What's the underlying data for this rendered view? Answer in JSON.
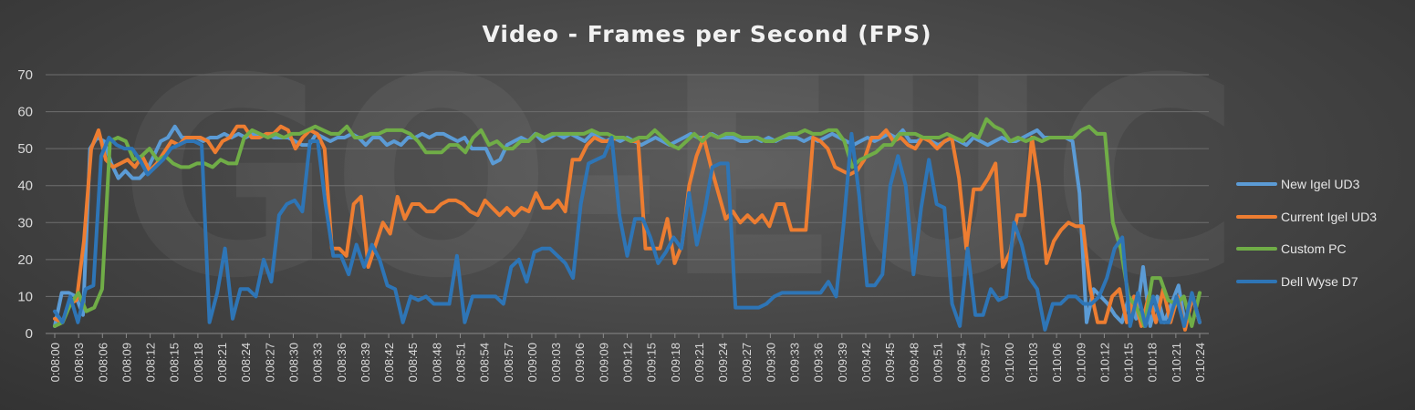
{
  "chart_data": {
    "type": "line",
    "title": "Video - Frames per Second (FPS)",
    "xlabel": "",
    "ylabel": "",
    "ylim": [
      0,
      70
    ],
    "yticks": [
      0,
      10,
      20,
      30,
      40,
      50,
      60,
      70
    ],
    "x_tick_labels": [
      "0:08:00",
      "0:08:03",
      "0:08:06",
      "0:08:09",
      "0:08:12",
      "0:08:15",
      "0:08:18",
      "0:08:21",
      "0:08:24",
      "0:08:27",
      "0:08:30",
      "0:08:33",
      "0:08:36",
      "0:08:39",
      "0:08:42",
      "0:08:45",
      "0:08:48",
      "0:08:51",
      "0:08:54",
      "0:08:57",
      "0:09:00",
      "0:09:03",
      "0:09:06",
      "0:09:09",
      "0:09:12",
      "0:09:15",
      "0:09:18",
      "0:09:21",
      "0:09:24",
      "0:09:27",
      "0:09:30",
      "0:09:33",
      "0:09:36",
      "0:09:39",
      "0:09:42",
      "0:09:45",
      "0:09:48",
      "0:09:51",
      "0:09:54",
      "0:09:57",
      "0:10:00",
      "0:10:03",
      "0:10:06",
      "0:10:09",
      "0:10:12",
      "0:10:15",
      "0:10:18",
      "0:10:21",
      "0:10:24"
    ],
    "grid": true,
    "legend_position": "right",
    "series": [
      {
        "name": "New Igel UD3",
        "color": "#5b9bd5",
        "values": [
          2,
          11,
          11,
          10,
          5,
          50,
          53,
          52,
          46,
          42,
          44,
          42,
          42,
          44,
          48,
          52,
          53,
          56,
          53,
          53,
          53,
          52,
          53,
          53,
          54,
          53,
          54,
          53,
          54,
          53,
          54,
          53,
          53,
          53,
          52,
          51,
          51,
          54,
          53,
          52,
          53,
          53,
          54,
          53,
          51,
          53,
          53,
          51,
          52,
          51,
          53,
          53,
          54,
          53,
          54,
          54,
          53,
          52,
          53,
          50,
          50,
          50,
          46,
          47,
          51,
          52,
          53,
          52,
          54,
          52,
          53,
          54,
          53,
          54,
          53,
          52,
          54,
          53,
          52,
          53,
          52,
          53,
          52,
          51,
          52,
          53,
          52,
          51,
          52,
          53,
          54,
          53,
          53,
          54,
          53,
          53,
          53,
          52,
          52,
          53,
          52,
          53,
          52,
          53,
          53,
          53,
          52,
          53,
          52,
          53,
          54,
          53,
          52,
          51,
          52,
          53,
          52,
          53,
          54,
          53,
          55,
          52,
          52,
          53,
          52,
          51,
          52,
          53,
          52,
          51,
          53,
          52,
          51,
          52,
          53,
          52,
          52,
          53,
          54,
          55,
          53,
          53,
          53,
          53,
          52,
          38,
          3,
          12,
          10,
          8,
          5,
          3,
          10,
          4,
          18,
          2,
          10,
          3,
          8,
          13,
          2,
          10,
          3
        ]
      },
      {
        "name": "Current Igel UD3",
        "color": "#ed7d31",
        "values": [
          4,
          3,
          8,
          9,
          25,
          50,
          55,
          47,
          45,
          46,
          47,
          45,
          48,
          44,
          46,
          49,
          52,
          51,
          53,
          53,
          53,
          52,
          49,
          52,
          53,
          56,
          56,
          53,
          53,
          54,
          54,
          56,
          55,
          50,
          53,
          55,
          54,
          50,
          23,
          23,
          21,
          35,
          37,
          18,
          24,
          30,
          27,
          37,
          31,
          35,
          35,
          33,
          33,
          35,
          36,
          36,
          35,
          33,
          32,
          36,
          34,
          32,
          34,
          32,
          34,
          33,
          38,
          34,
          34,
          36,
          33,
          47,
          47,
          51,
          53,
          52,
          52,
          53,
          53,
          52,
          52,
          23,
          23,
          23,
          31,
          19,
          24,
          40,
          48,
          53,
          45,
          38,
          31,
          33,
          30,
          32,
          30,
          32,
          29,
          35,
          35,
          28,
          28,
          28,
          53,
          52,
          50,
          45,
          44,
          43,
          44,
          47,
          53,
          53,
          55,
          52,
          53,
          51,
          50,
          53,
          52,
          50,
          52,
          53,
          42,
          23,
          39,
          39,
          42,
          46,
          18,
          22,
          32,
          32,
          53,
          40,
          19,
          25,
          28,
          30,
          29,
          29,
          12,
          3,
          3,
          10,
          12,
          3,
          10,
          2,
          10,
          3,
          12,
          3,
          10,
          1,
          10,
          3
        ]
      },
      {
        "name": "Custom PC",
        "color": "#70ad47",
        "values": [
          2,
          3,
          8,
          11,
          6,
          7,
          12,
          52,
          53,
          52,
          47,
          48,
          50,
          47,
          48,
          46,
          45,
          45,
          46,
          46,
          45,
          47,
          46,
          46,
          53,
          55,
          54,
          53,
          54,
          53,
          54,
          54,
          55,
          56,
          55,
          54,
          54,
          56,
          53,
          53,
          54,
          54,
          55,
          55,
          55,
          54,
          52,
          49,
          49,
          49,
          51,
          51,
          49,
          53,
          55,
          51,
          52,
          50,
          50,
          52,
          52,
          54,
          53,
          54,
          54,
          54,
          54,
          54,
          55,
          54,
          54,
          53,
          53,
          52,
          53,
          53,
          55,
          53,
          51,
          50,
          52,
          54,
          52,
          54,
          53,
          54,
          54,
          53,
          53,
          53,
          52,
          52,
          53,
          54,
          54,
          55,
          54,
          54,
          55,
          55,
          52,
          45,
          47,
          48,
          49,
          51,
          51,
          54,
          54,
          54,
          53,
          53,
          53,
          54,
          53,
          52,
          54,
          53,
          58,
          56,
          55,
          52,
          53,
          52,
          53,
          52,
          53,
          53,
          53,
          53,
          55,
          56,
          54,
          54,
          30,
          23,
          10,
          7,
          2,
          15,
          15,
          9,
          8,
          10,
          2,
          11
        ]
      },
      {
        "name": "Dell Wyse D7",
        "color": "#2e75b6",
        "values": [
          6,
          3,
          10,
          3,
          12,
          13,
          48,
          53,
          51,
          50,
          50,
          47,
          43,
          45,
          47,
          50,
          51,
          52,
          52,
          51,
          3,
          11,
          23,
          4,
          12,
          12,
          10,
          20,
          14,
          32,
          35,
          36,
          33,
          52,
          52,
          35,
          21,
          21,
          16,
          24,
          18,
          24,
          20,
          13,
          12,
          3,
          10,
          9,
          10,
          8,
          8,
          8,
          21,
          3,
          10,
          10,
          10,
          10,
          8,
          18,
          20,
          14,
          22,
          23,
          23,
          21,
          19,
          15,
          35,
          46,
          47,
          48,
          53,
          32,
          21,
          31,
          31,
          26,
          19,
          22,
          26,
          23,
          38,
          24,
          33,
          45,
          46,
          46,
          7,
          7,
          7,
          7,
          8,
          10,
          11,
          11,
          11,
          11,
          11,
          11,
          14,
          10,
          30,
          54,
          37,
          13,
          13,
          16,
          40,
          48,
          40,
          16,
          34,
          47,
          35,
          34,
          8,
          2,
          23,
          5,
          5,
          12,
          9,
          10,
          30,
          24,
          15,
          12,
          1,
          8,
          8,
          10,
          10,
          8,
          8,
          10,
          15,
          23,
          26,
          2,
          11,
          2,
          10,
          3,
          3,
          10,
          2,
          11,
          3
        ]
      }
    ]
  }
}
